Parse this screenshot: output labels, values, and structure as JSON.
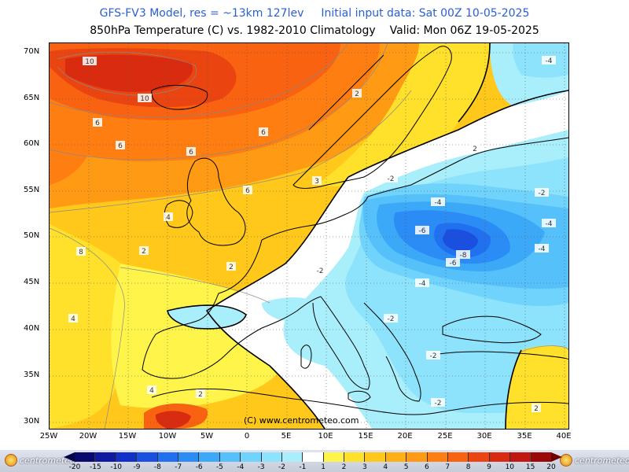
{
  "header": {
    "title_model": "GFS-FV3 Model, res = ~13km 127lev",
    "title_init": "Initial input data: Sat 00Z 10-05-2025",
    "title_field": "850hPa Temperature (C) vs. 1982-2010 Climatology",
    "title_valid": "Valid: Mon 06Z 19-05-2025"
  },
  "map": {
    "lat_labels": [
      "70N",
      "65N",
      "60N",
      "55N",
      "50N",
      "45N",
      "40N",
      "35N",
      "30N"
    ],
    "lon_labels": [
      "25W",
      "20W",
      "15W",
      "10W",
      "5W",
      "0",
      "5E",
      "10E",
      "15E",
      "20E",
      "25E",
      "30E",
      "35E",
      "40E"
    ],
    "credit": "(C) www.centrometeo.com",
    "contour_labels": {
      "l10a": "10",
      "l10b": "10",
      "l6a": "6",
      "l6b": "6",
      "l6c": "6",
      "l6d": "6",
      "l6e": "6",
      "l4a": "4",
      "l4b": "4",
      "l4c": "4",
      "l8a": "8",
      "l2a": "2",
      "l2b": "2",
      "l2c": "2",
      "l2d": "2",
      "l2e": "2",
      "l2f": "2",
      "m2a": "-2",
      "m2b": "-2",
      "m2c": "-2",
      "m2d": "-2",
      "m2e": "-2",
      "m2f": "-2",
      "m4a": "-4",
      "m4b": "-4",
      "m4c": "-4",
      "m4d": "-4",
      "m4e": "-4",
      "m6a": "-6",
      "m6b": "-6",
      "m8a": "-8",
      "l3a": "3"
    }
  },
  "colorbar": {
    "labels": [
      "-20",
      "-15",
      "-10",
      "-9",
      "-8",
      "-7",
      "-6",
      "-5",
      "-4",
      "-3",
      "-2",
      "-1",
      "1",
      "2",
      "3",
      "4",
      "5",
      "6",
      "7",
      "8",
      "9",
      "10",
      "15",
      "20"
    ],
    "colors": [
      "#0a0a6e",
      "#0f1aa0",
      "#1030c8",
      "#1a4fe0",
      "#2070f0",
      "#2b8cf5",
      "#3ca8f8",
      "#55c0fa",
      "#6fd3fb",
      "#8ce3fb",
      "#a9eefb",
      "#ffffff",
      "#fff44a",
      "#ffe02a",
      "#ffc81a",
      "#ffb015",
      "#ff9a15",
      "#ff7e12",
      "#f86210",
      "#ea4410",
      "#d82b10",
      "#c01810",
      "#9a0808"
    ],
    "logo_text": "centrometeo"
  }
}
